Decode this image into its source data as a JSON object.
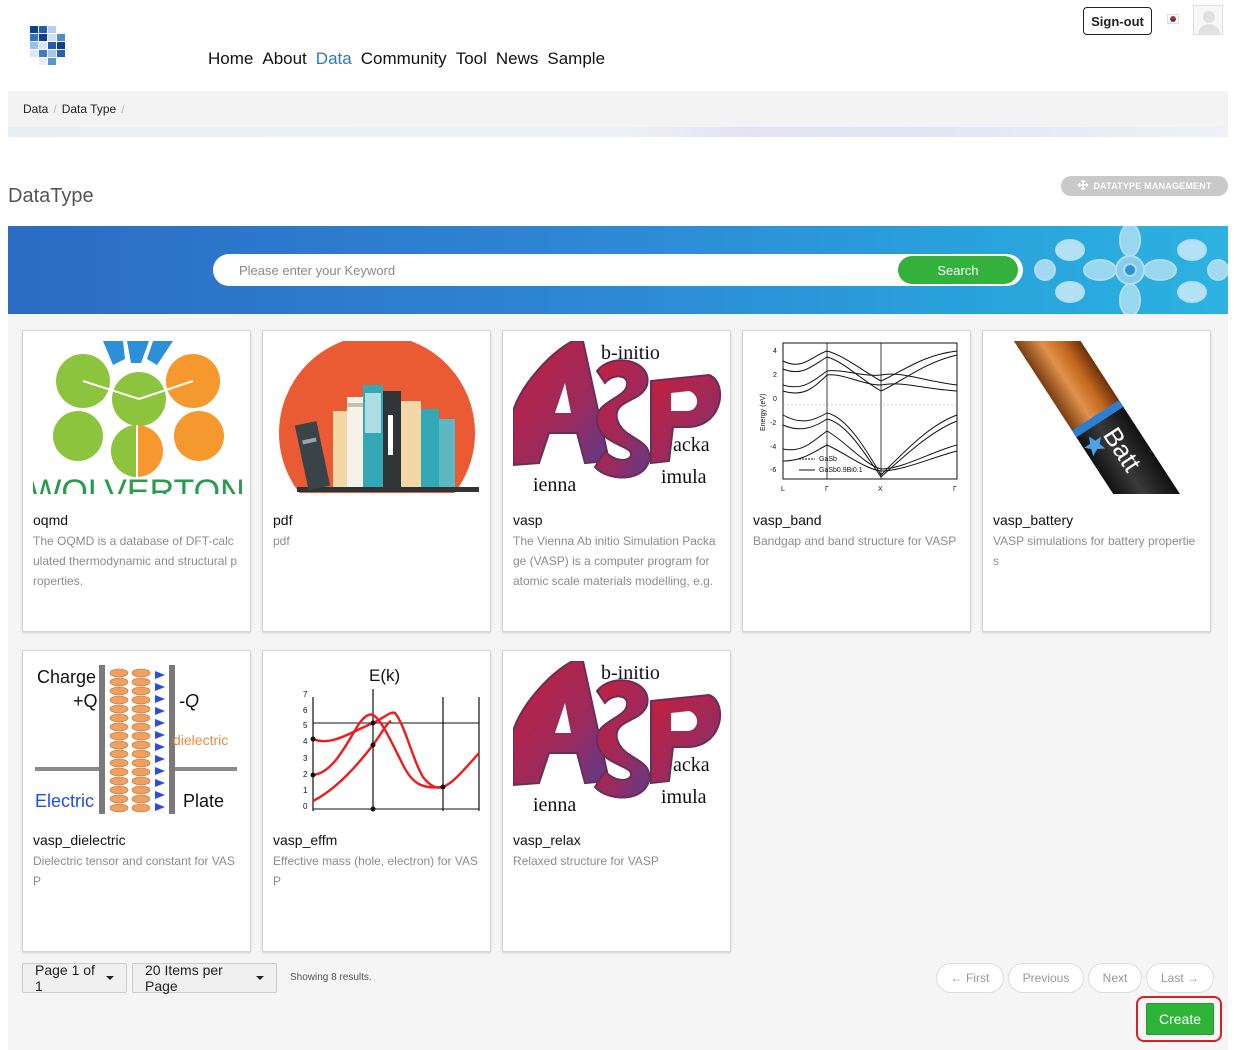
{
  "header": {
    "nav": [
      "Home",
      "About",
      "Data",
      "Community",
      "Tool",
      "News",
      "Sample"
    ],
    "active_nav": "Data",
    "signout_label": "Sign-out"
  },
  "breadcrumb": [
    "Data",
    "Data Type"
  ],
  "page": {
    "title": "DataType",
    "management_label": "DATATYPE MANAGEMENT"
  },
  "search": {
    "placeholder": "Please enter your Keyword",
    "button_label": "Search"
  },
  "cards": [
    {
      "name": "oqmd",
      "desc": "The OQMD is a database of DFT-calculated thermodynamic and structural properties.",
      "thumb": "oqmd"
    },
    {
      "name": "pdf",
      "desc": "pdf",
      "thumb": "books"
    },
    {
      "name": "vasp",
      "desc": "The Vienna Ab initio Simulation Package (VASP) is a computer program for atomic scale materials modelling, e.g.",
      "thumb": "vasp"
    },
    {
      "name": "vasp_band",
      "desc": "Bandgap and band structure for VASP",
      "thumb": "bandplot"
    },
    {
      "name": "vasp_battery",
      "desc": "VASP simulations for battery properties",
      "thumb": "battery"
    },
    {
      "name": "vasp_dielectric",
      "desc": "Dielectric tensor and constant for VASP",
      "thumb": "capacitor"
    },
    {
      "name": "vasp_effm",
      "desc": "Effective mass (hole, electron) for VASP",
      "thumb": "ekplot"
    },
    {
      "name": "vasp_relax",
      "desc": "Relaxed structure for VASP",
      "thumb": "vasp"
    }
  ],
  "thumb_text": {
    "oqmd": "WOLVERTON",
    "vasp": [
      "b-initio",
      "acka",
      "ienna",
      "imula"
    ],
    "band_ylabel": "Energy (eV)",
    "band_yticks": [
      "4",
      "2",
      "0",
      "-2",
      "-4",
      "-6"
    ],
    "band_xticks": [
      "L",
      "Γ",
      "X",
      "Γ"
    ],
    "band_legend": [
      "GaSb",
      "GaSb0.9Bi0.1"
    ],
    "battery": "Batt",
    "capacitor": [
      "Charge",
      "+Q",
      "-Q",
      "dielectric",
      "Electric",
      "Plate"
    ],
    "ek_title": "E(k)",
    "ek_yticks": [
      "7",
      "6",
      "5",
      "4",
      "3",
      "2",
      "1",
      "0"
    ]
  },
  "pagination": {
    "page_label": "Page 1 of 1",
    "per_page_label": "20 Items per Page",
    "showing": "Showing 8 results.",
    "first": "← First",
    "previous": "Previous",
    "next": "Next",
    "last": "Last →",
    "create_label": "Create"
  },
  "colors": {
    "accent_blue": "#2a79c0",
    "search_green": "#33b13c",
    "create_green": "#2fb43a",
    "highlight_red": "#d81f26"
  }
}
